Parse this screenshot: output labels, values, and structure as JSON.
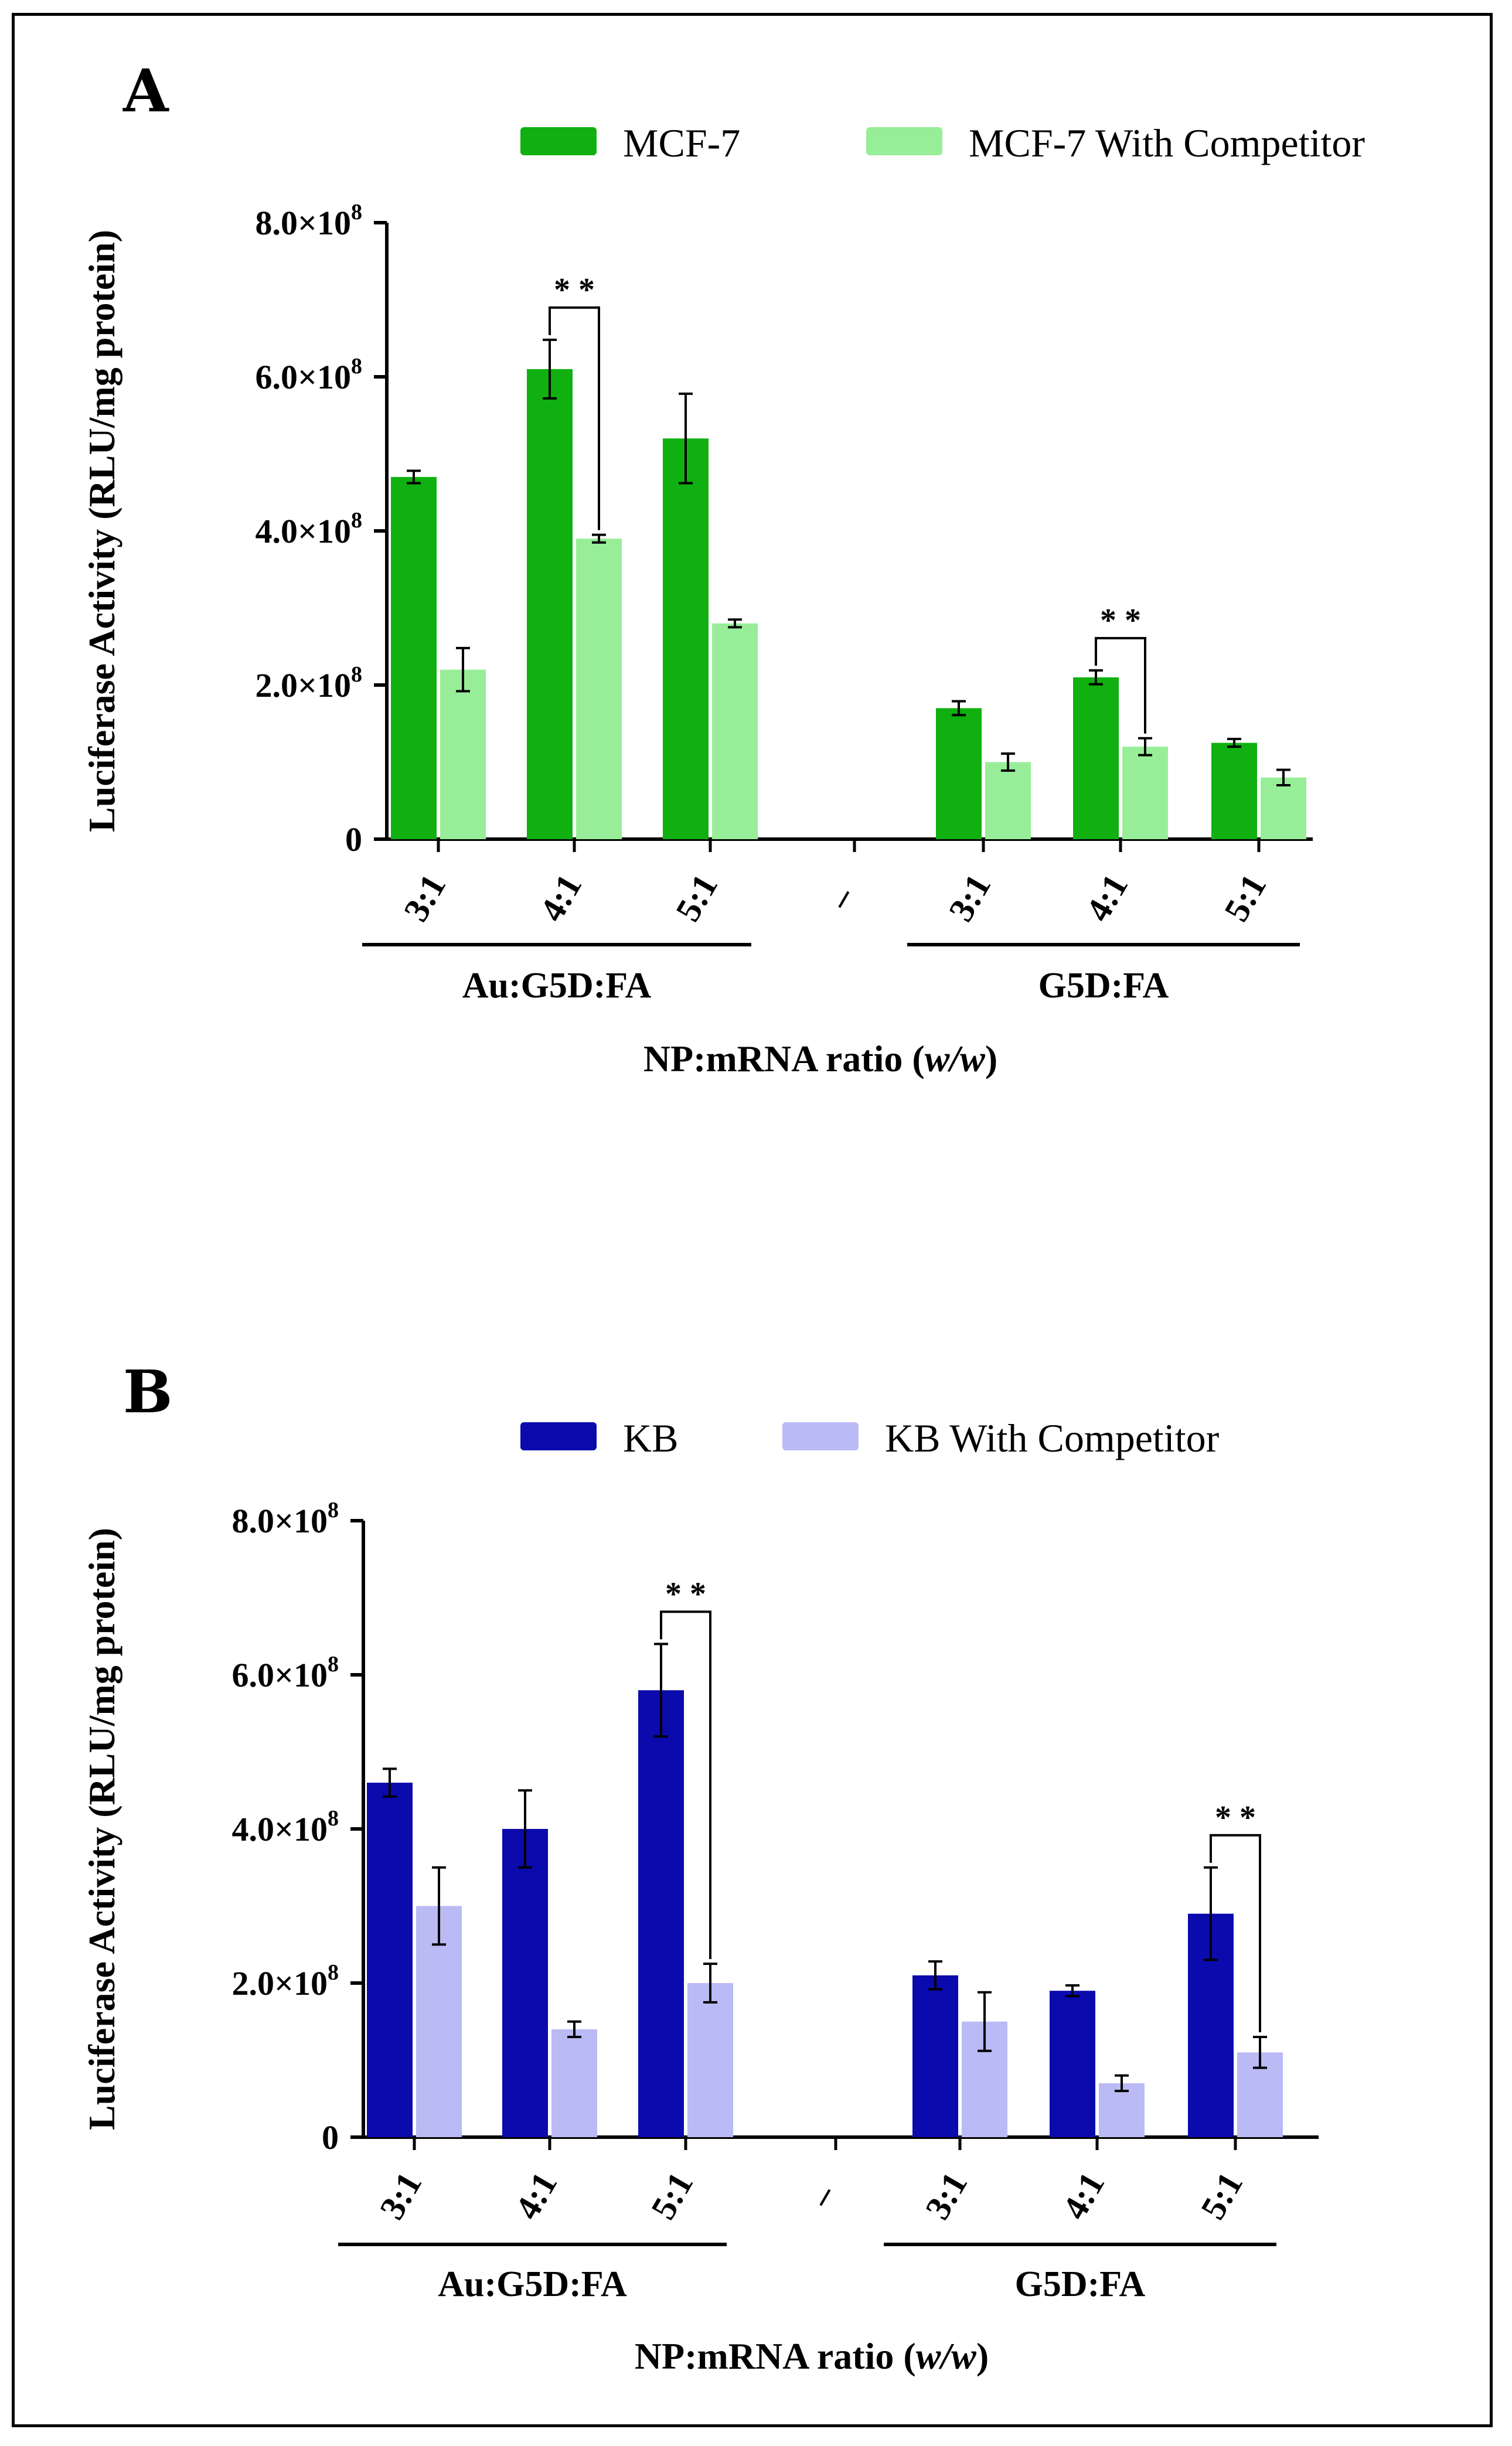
{
  "chart_data": [
    {
      "panel": "A",
      "type": "bar",
      "title": "",
      "ylabel": "Luciferase Activity (RLU/mg protein)",
      "xlabel": "NP:mRNA ratio (w/w)",
      "xlabel_main": "NP:mRNA ratio (",
      "xlabel_italic": "w/w",
      "xlabel_close": ")",
      "ylim": [
        0,
        800000000
      ],
      "yticks": [
        {
          "value": 0,
          "mantissa": "0",
          "exponent": ""
        },
        {
          "value": 200000000,
          "mantissa": "2.0×10",
          "exponent": "8"
        },
        {
          "value": 400000000,
          "mantissa": "4.0×10",
          "exponent": "8"
        },
        {
          "value": 600000000,
          "mantissa": "6.0×10",
          "exponent": "8"
        },
        {
          "value": 800000000,
          "mantissa": "8.0×10",
          "exponent": "8"
        }
      ],
      "categories": [
        "3:1",
        "4:1",
        "5:1",
        "–",
        "3:1",
        "4:1",
        "5:1"
      ],
      "groups": [
        {
          "label": "Au:G5D:FA",
          "from": 0,
          "to": 2
        },
        {
          "label": "G5D:FA",
          "from": 4,
          "to": 6
        }
      ],
      "series": [
        {
          "name": "MCF-7",
          "color": "#10b010",
          "values": [
            470000000,
            610000000,
            520000000,
            null,
            170000000,
            210000000,
            125000000
          ],
          "errors": [
            8000000,
            38000000,
            58000000,
            null,
            9000000,
            9000000,
            5000000
          ]
        },
        {
          "name": "MCF-7 With Competitor",
          "color": "#98ee98",
          "values": [
            220000000,
            390000000,
            280000000,
            null,
            100000000,
            120000000,
            80000000
          ],
          "errors": [
            28000000,
            5000000,
            5000000,
            null,
            11000000,
            11000000,
            10000000
          ]
        }
      ],
      "significance": [
        {
          "label": "**",
          "category": 1
        },
        {
          "label": "**",
          "category": 5
        }
      ],
      "legend_position": "top"
    },
    {
      "panel": "B",
      "type": "bar",
      "title": "",
      "ylabel": "Luciferase Activity (RLU/mg protein)",
      "xlabel": "NP:mRNA ratio (w/w)",
      "xlabel_main": "NP:mRNA ratio (",
      "xlabel_italic": "w/w",
      "xlabel_close": ")",
      "ylim": [
        0,
        800000000
      ],
      "yticks": [
        {
          "value": 0,
          "mantissa": "0",
          "exponent": ""
        },
        {
          "value": 200000000,
          "mantissa": "2.0×10",
          "exponent": "8"
        },
        {
          "value": 400000000,
          "mantissa": "4.0×10",
          "exponent": "8"
        },
        {
          "value": 600000000,
          "mantissa": "6.0×10",
          "exponent": "8"
        },
        {
          "value": 800000000,
          "mantissa": "8.0×10",
          "exponent": "8"
        }
      ],
      "categories": [
        "3:1",
        "4:1",
        "5:1",
        "–",
        "3:1",
        "4:1",
        "5:1"
      ],
      "groups": [
        {
          "label": "Au:G5D:FA",
          "from": 0,
          "to": 2
        },
        {
          "label": "G5D:FA",
          "from": 4,
          "to": 6
        }
      ],
      "series": [
        {
          "name": "KB",
          "color": "#0a0aad",
          "values": [
            460000000,
            400000000,
            580000000,
            null,
            210000000,
            190000000,
            290000000
          ],
          "errors": [
            18000000,
            50000000,
            60000000,
            null,
            18000000,
            7000000,
            60000000
          ]
        },
        {
          "name": "KB With Competitor",
          "color": "#babaf5",
          "values": [
            300000000,
            140000000,
            200000000,
            null,
            150000000,
            70000000,
            110000000
          ],
          "errors": [
            50000000,
            10000000,
            25000000,
            null,
            38000000,
            10000000,
            20000000
          ]
        }
      ],
      "significance": [
        {
          "label": "**",
          "category": 2
        },
        {
          "label": "**",
          "category": 6
        }
      ],
      "legend_position": "top"
    }
  ]
}
